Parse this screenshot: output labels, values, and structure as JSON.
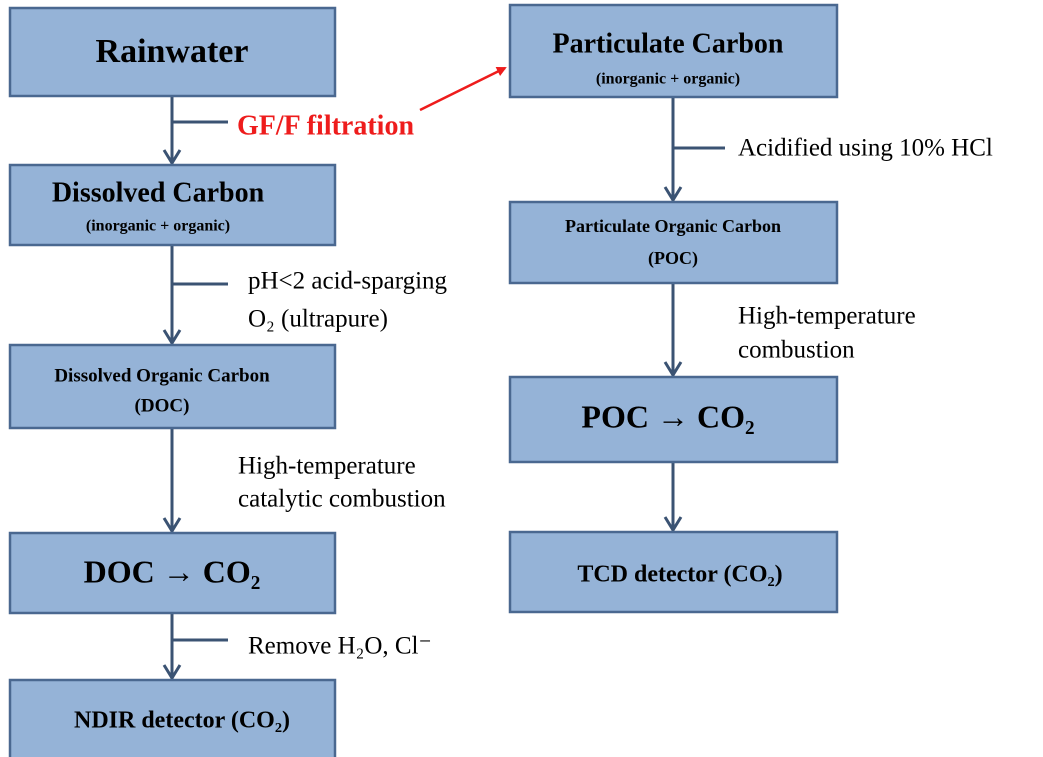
{
  "nodes": [
    {
      "label": "Rainwater"
    },
    {
      "label": "Dissolved Carbon",
      "sublabel": "(inorganic + organic)"
    },
    {
      "label": "Dissolved Organic Carbon",
      "sublabel": "(DOC)"
    },
    {
      "label": "DOC → CO₂"
    },
    {
      "label": "NDIR detector (CO₂)"
    },
    {
      "label": "Particulate Carbon",
      "sublabel": "(inorganic + organic)"
    },
    {
      "label": "Particulate Organic Carbon",
      "sublabel": "(POC)"
    },
    {
      "label": "POC → CO₂"
    },
    {
      "label": "TCD detector (CO₂)"
    }
  ],
  "steps": [
    {
      "lines": [
        "GF/F filtration"
      ]
    },
    {
      "lines": [
        "pH<2 acid-sparging",
        "O₂ (ultrapure)"
      ]
    },
    {
      "lines": [
        "High-temperature",
        "catalytic combustion"
      ]
    },
    {
      "lines": [
        "Remove H₂O, Cl⁻"
      ]
    },
    {
      "lines": [
        "Acidified using 10% HCl"
      ]
    },
    {
      "lines": [
        "High-temperature",
        "combustion"
      ]
    }
  ]
}
